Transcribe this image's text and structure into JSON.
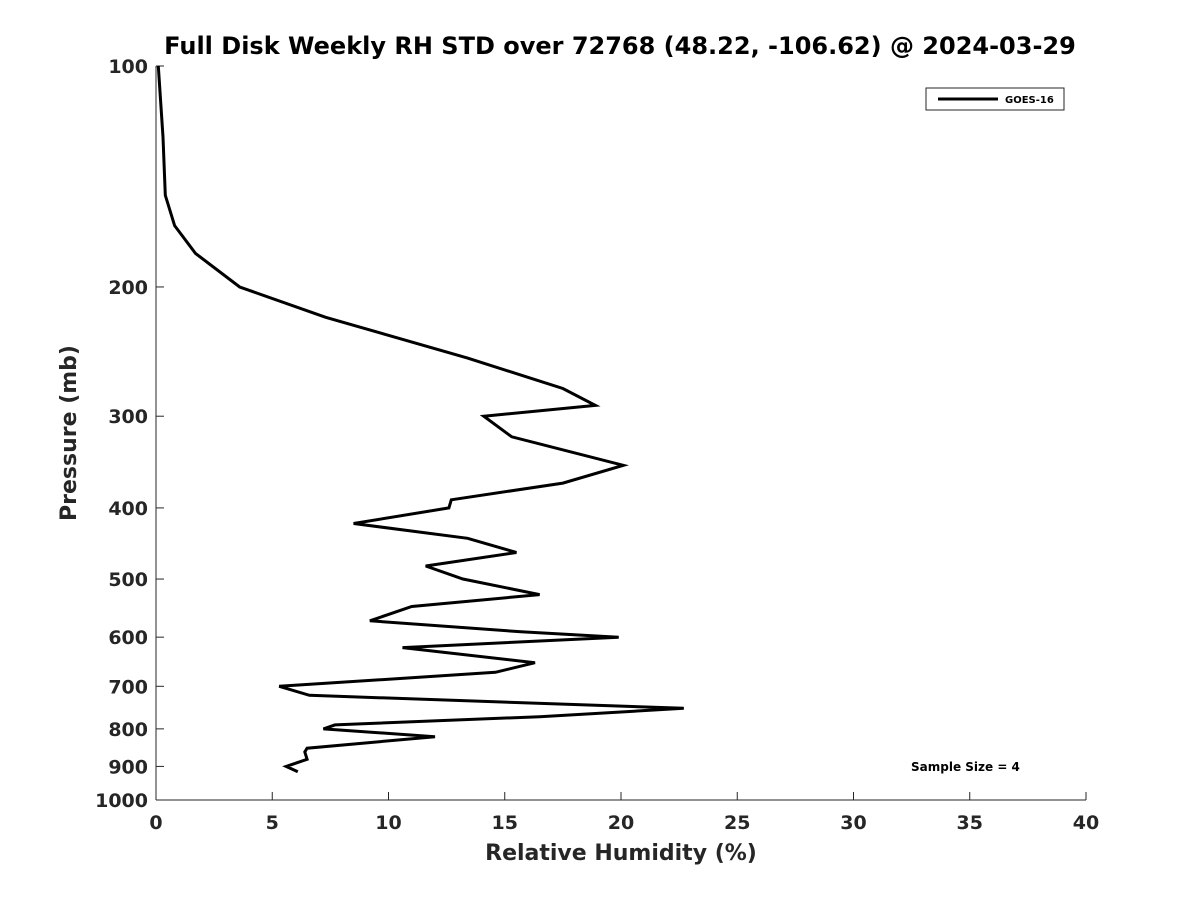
{
  "chart_data": {
    "type": "line",
    "title": "Full Disk Weekly RH STD over 72768 (48.22, -106.62) @ 2024-03-29",
    "xlabel": "Relative Humidity (%)",
    "ylabel": "Pressure (mb)",
    "xlim": [
      0,
      40
    ],
    "ylim": [
      100,
      1000
    ],
    "y_scale": "log",
    "y_reversed": true,
    "xticks": [
      0,
      5,
      10,
      15,
      20,
      25,
      30,
      35,
      40
    ],
    "yticks": [
      100,
      200,
      300,
      400,
      500,
      600,
      700,
      800,
      900,
      1000
    ],
    "grid": false,
    "legend_position": "top-right",
    "line_color": "#000000",
    "annotation": "Sample Size = 4",
    "series": [
      {
        "name": "GOES-16",
        "x": [
          0.1,
          0.3,
          0.4,
          0.8,
          1.7,
          3.6,
          7.3,
          13.4,
          17.5,
          18.9,
          14.1,
          15.3,
          20.1,
          17.5,
          12.7,
          12.6,
          8.5,
          13.4,
          15.5,
          11.6,
          13.2,
          16.5,
          11.0,
          9.2,
          15.7,
          19.9,
          10.6,
          16.3,
          14.6,
          5.3,
          6.6,
          22.7,
          16.5,
          7.7,
          7.2,
          12.0,
          6.5,
          6.4,
          6.5,
          5.6,
          6.1
        ],
        "y": [
          100,
          125,
          150,
          165,
          180,
          200,
          220,
          250,
          275,
          290,
          300,
          320,
          350,
          370,
          390,
          400,
          420,
          440,
          460,
          480,
          500,
          525,
          545,
          570,
          590,
          600,
          620,
          650,
          670,
          700,
          720,
          750,
          770,
          790,
          800,
          820,
          850,
          860,
          880,
          900,
          915
        ]
      }
    ]
  }
}
